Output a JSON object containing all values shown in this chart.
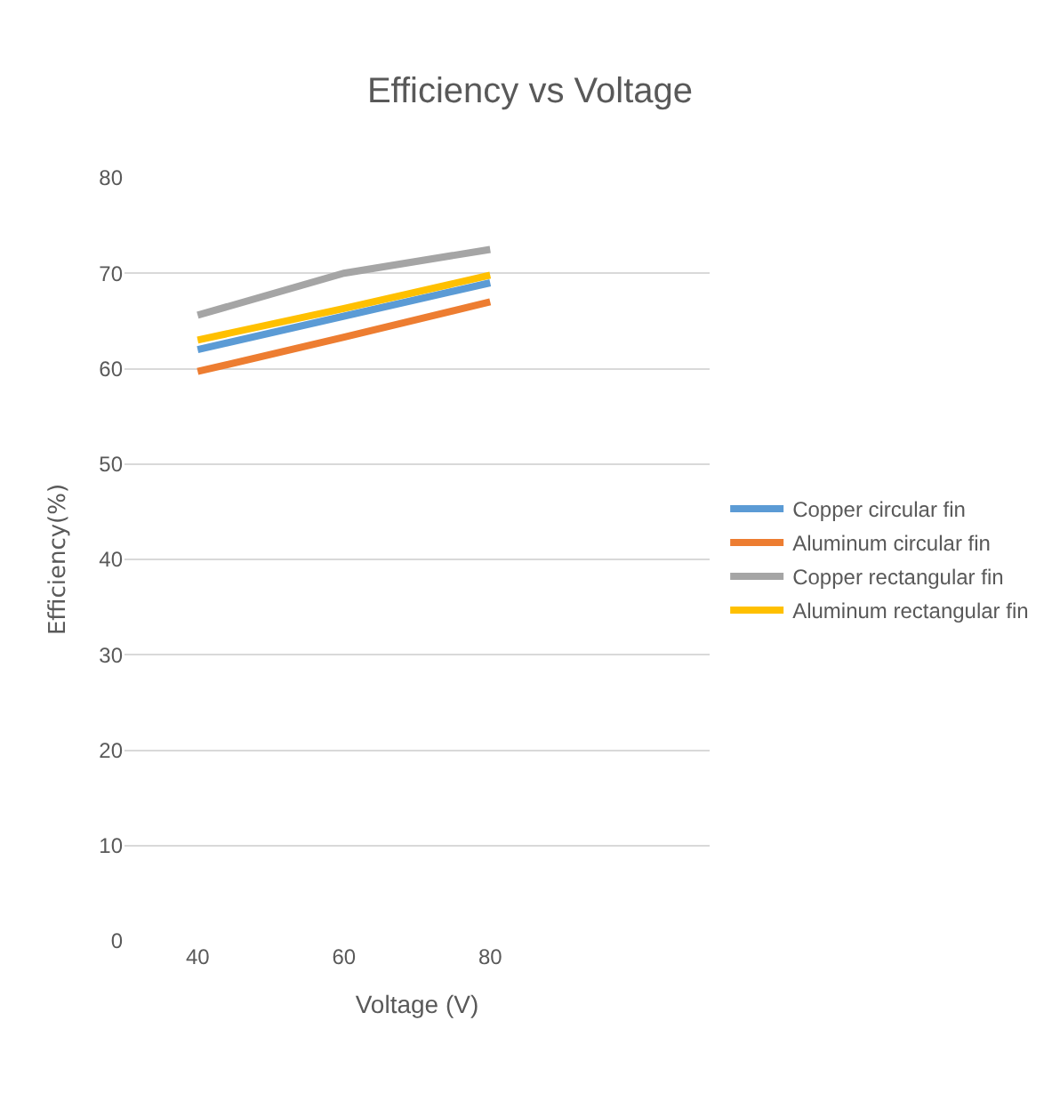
{
  "chart_data": {
    "type": "line",
    "title": "Efficiency vs Voltage",
    "xlabel": "Voltage (V)",
    "ylabel": "Efficiency(%)",
    "categories": [
      "40",
      "60",
      "80",
      null
    ],
    "series": [
      {
        "name": "Copper circular fin",
        "color": "#5b9bd5",
        "values": [
          62,
          65.5,
          69,
          null
        ]
      },
      {
        "name": "Aluminum circular fin",
        "color": "#ed7d31",
        "values": [
          59.7,
          63.3,
          67,
          null
        ]
      },
      {
        "name": "Copper rectangular fin",
        "color": "#a5a5a5",
        "values": [
          65.6,
          70,
          72.5,
          null
        ]
      },
      {
        "name": "Aluminum rectangular fin",
        "color": "#ffc000",
        "values": [
          63,
          66.3,
          69.8,
          null
        ]
      }
    ],
    "ylim": [
      0,
      80
    ],
    "yticks": [
      0,
      10,
      20,
      30,
      40,
      50,
      60,
      70,
      80
    ],
    "grid": "y",
    "legend": "right",
    "marker": "none",
    "line_style": "solid"
  }
}
